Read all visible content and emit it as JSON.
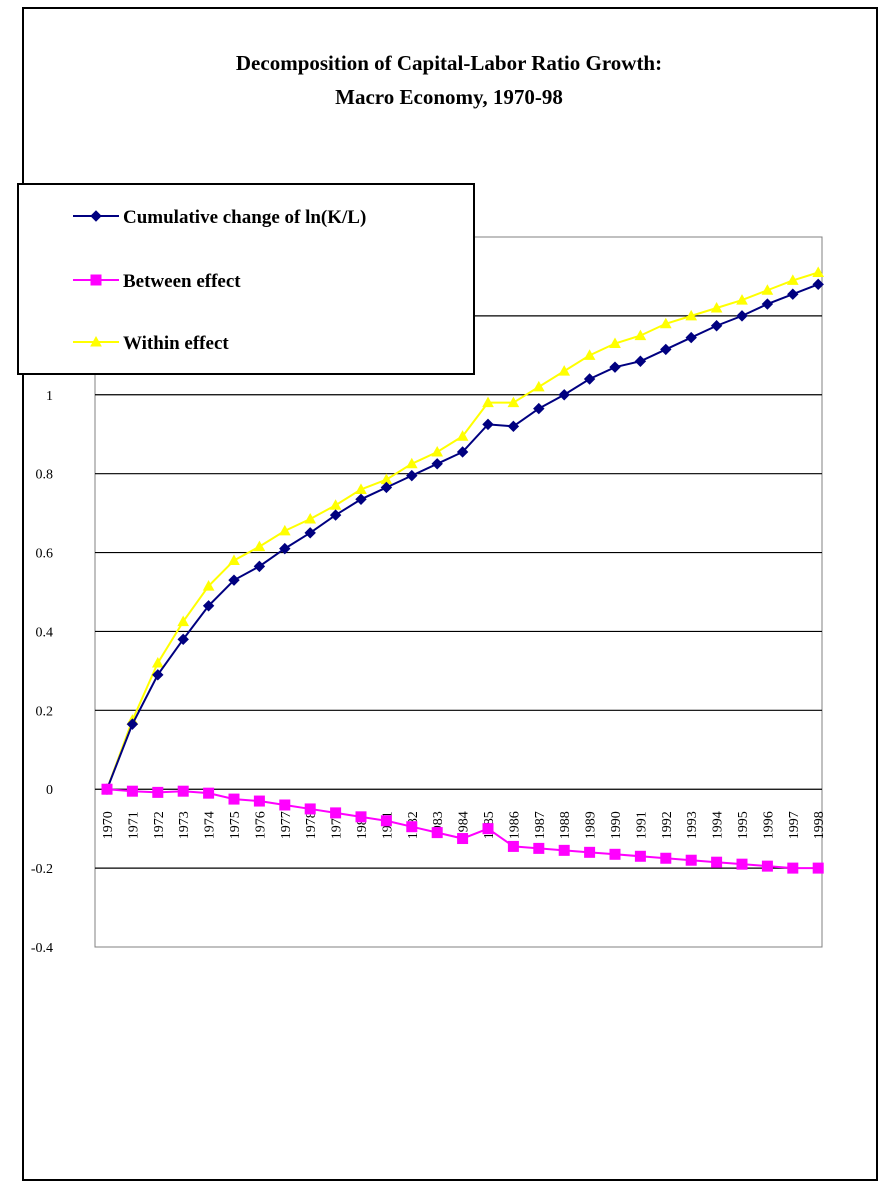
{
  "chart_data": {
    "type": "line",
    "title": "Decomposition of Capital-Labor Ratio Growth:",
    "subtitle": "Macro Economy, 1970-98",
    "xlabel": "",
    "ylabel": "",
    "ylim": [
      -0.4,
      1.4
    ],
    "yticks": [
      "-0.4",
      "-0.2",
      "0",
      "0.2",
      "0.4",
      "0.6",
      "0.8",
      "1"
    ],
    "grid": true,
    "legend_position": "top-left",
    "categories": [
      "1970",
      "1971",
      "1972",
      "1973",
      "1974",
      "1975",
      "1976",
      "1977",
      "1978",
      "1979",
      "1980",
      "1981",
      "1982",
      "1983",
      "1984",
      "1985",
      "1986",
      "1987",
      "1988",
      "1989",
      "1990",
      "1991",
      "1992",
      "1993",
      "1994",
      "1995",
      "1996",
      "1997",
      "1998"
    ],
    "series": [
      {
        "name": "Cumulative change of ln(K/L)",
        "color": "#000080",
        "marker": "diamond",
        "values": [
          0.0,
          0.165,
          0.29,
          0.38,
          0.465,
          0.53,
          0.565,
          0.61,
          0.65,
          0.695,
          0.735,
          0.765,
          0.795,
          0.825,
          0.855,
          0.925,
          0.92,
          0.965,
          1.0,
          1.04,
          1.07,
          1.085,
          1.115,
          1.145,
          1.175,
          1.2,
          1.23,
          1.255,
          1.28
        ]
      },
      {
        "name": "Between effect",
        "color": "#FF00FF",
        "marker": "square",
        "values": [
          0.0,
          -0.005,
          -0.008,
          -0.005,
          -0.01,
          -0.025,
          -0.03,
          -0.04,
          -0.05,
          -0.06,
          -0.07,
          -0.08,
          -0.095,
          -0.11,
          -0.125,
          -0.1,
          -0.145,
          -0.15,
          -0.155,
          -0.16,
          -0.165,
          -0.17,
          -0.175,
          -0.18,
          -0.185,
          -0.19,
          -0.195,
          -0.2,
          -0.2
        ]
      },
      {
        "name": "Within effect",
        "color": "#FFFF00",
        "marker": "triangle",
        "values": [
          0.0,
          0.175,
          0.32,
          0.425,
          0.515,
          0.58,
          0.615,
          0.655,
          0.685,
          0.72,
          0.76,
          0.785,
          0.825,
          0.855,
          0.895,
          0.98,
          0.98,
          1.02,
          1.06,
          1.1,
          1.13,
          1.15,
          1.18,
          1.2,
          1.22,
          1.24,
          1.265,
          1.29,
          1.31
        ]
      }
    ]
  }
}
